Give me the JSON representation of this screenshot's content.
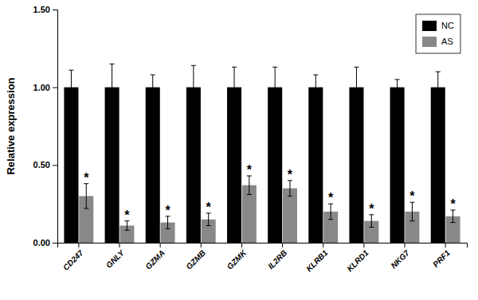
{
  "chart_data": {
    "type": "bar",
    "ylabel": "Relative expression",
    "categories": [
      "CD247",
      "GNLY",
      "GZMA",
      "GZMB",
      "GZMK",
      "IL2RB",
      "KLRB1",
      "KLRD1",
      "NKG7",
      "PRF1"
    ],
    "series": [
      {
        "name": "NC",
        "color": "#000000",
        "values": [
          1.0,
          1.0,
          1.0,
          1.0,
          1.0,
          1.0,
          1.0,
          1.0,
          1.0,
          1.0
        ],
        "errors": [
          0.11,
          0.15,
          0.08,
          0.14,
          0.13,
          0.13,
          0.08,
          0.13,
          0.05,
          0.1
        ]
      },
      {
        "name": "AS",
        "color": "#888888",
        "values": [
          0.3,
          0.11,
          0.13,
          0.15,
          0.37,
          0.35,
          0.2,
          0.14,
          0.2,
          0.17
        ],
        "errors": [
          0.08,
          0.03,
          0.04,
          0.04,
          0.06,
          0.05,
          0.05,
          0.04,
          0.06,
          0.04
        ],
        "annotations": [
          "*",
          "*",
          "*",
          "*",
          "*",
          "*",
          "*",
          "*",
          "*",
          "*"
        ]
      }
    ],
    "ylim": [
      0,
      1.5
    ],
    "yticks": [
      {
        "value": 0.0,
        "label": "0.00"
      },
      {
        "value": 0.5,
        "label": "0.50"
      },
      {
        "value": 1.0,
        "label": "1.00"
      },
      {
        "value": 1.5,
        "label": "1.50"
      }
    ],
    "grid": false,
    "legend": "upper right"
  }
}
